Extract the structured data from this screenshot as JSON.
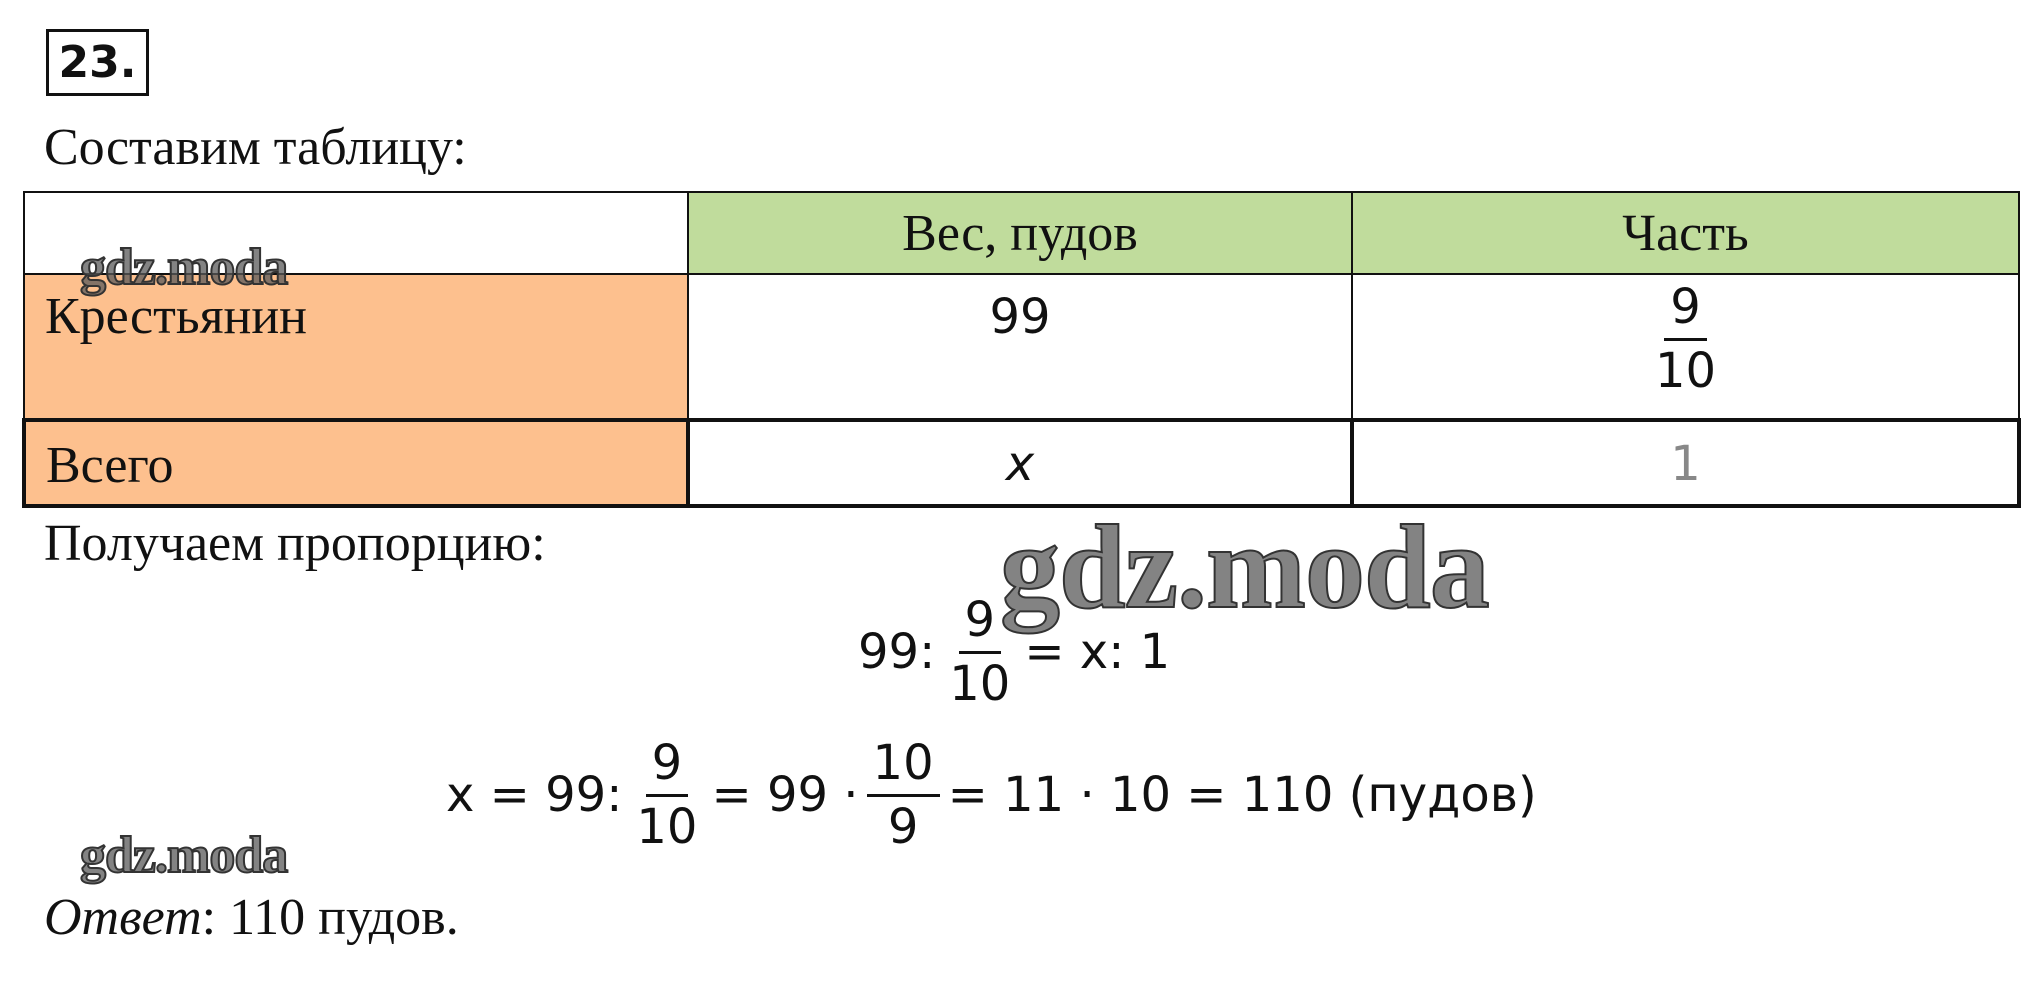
{
  "number": "23.",
  "intro": "Составим таблицу:",
  "table": {
    "header": [
      "Вес, пудов",
      "Часть"
    ],
    "rows": [
      {
        "label": "Крестьянин",
        "weight": "99",
        "part": {
          "num": "9",
          "den": "10"
        }
      },
      {
        "label": "Всего",
        "weight": "x",
        "part": "1"
      }
    ]
  },
  "proportion_intro": "Получаем пропорцию:",
  "equation1": {
    "left": "99:",
    "frac": {
      "num": "9",
      "den": "10"
    },
    "right": "= x: 1"
  },
  "equation2": {
    "p1": "x = 99:",
    "frac1": {
      "num": "9",
      "den": "10"
    },
    "p2": "= 99 ·",
    "frac2": {
      "num": "10",
      "den": "9"
    },
    "p3": "= 11 · 10 = 110 (пудов)"
  },
  "answer": {
    "label": "Ответ",
    "text": ": 110 пудов."
  },
  "watermarks": [
    "gdz.moda",
    "gdz.moda",
    "gdz.moda"
  ]
}
